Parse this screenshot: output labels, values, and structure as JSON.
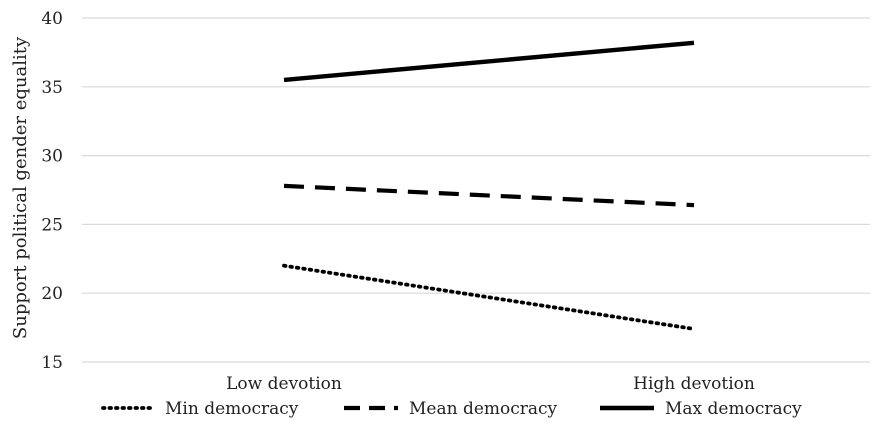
{
  "chart_data": {
    "type": "line",
    "categories": [
      "Low devotion",
      "High devotion"
    ],
    "series": [
      {
        "name": "Min democracy",
        "values": [
          22.0,
          17.4
        ],
        "style": "dotted"
      },
      {
        "name": "Mean democracy",
        "values": [
          27.8,
          26.4
        ],
        "style": "dashed"
      },
      {
        "name": "Max democracy",
        "values": [
          35.5,
          38.2
        ],
        "style": "solid"
      }
    ],
    "ylabel": "Support political gender equality",
    "xlabel": "",
    "title": "",
    "ylim": [
      15,
      40
    ],
    "yticks": [
      15,
      20,
      25,
      30,
      35,
      40
    ],
    "grid": true,
    "legend_position": "bottom",
    "colors": {
      "line": "#000000",
      "grid": "#d9d9d9",
      "text": "#222222"
    }
  }
}
